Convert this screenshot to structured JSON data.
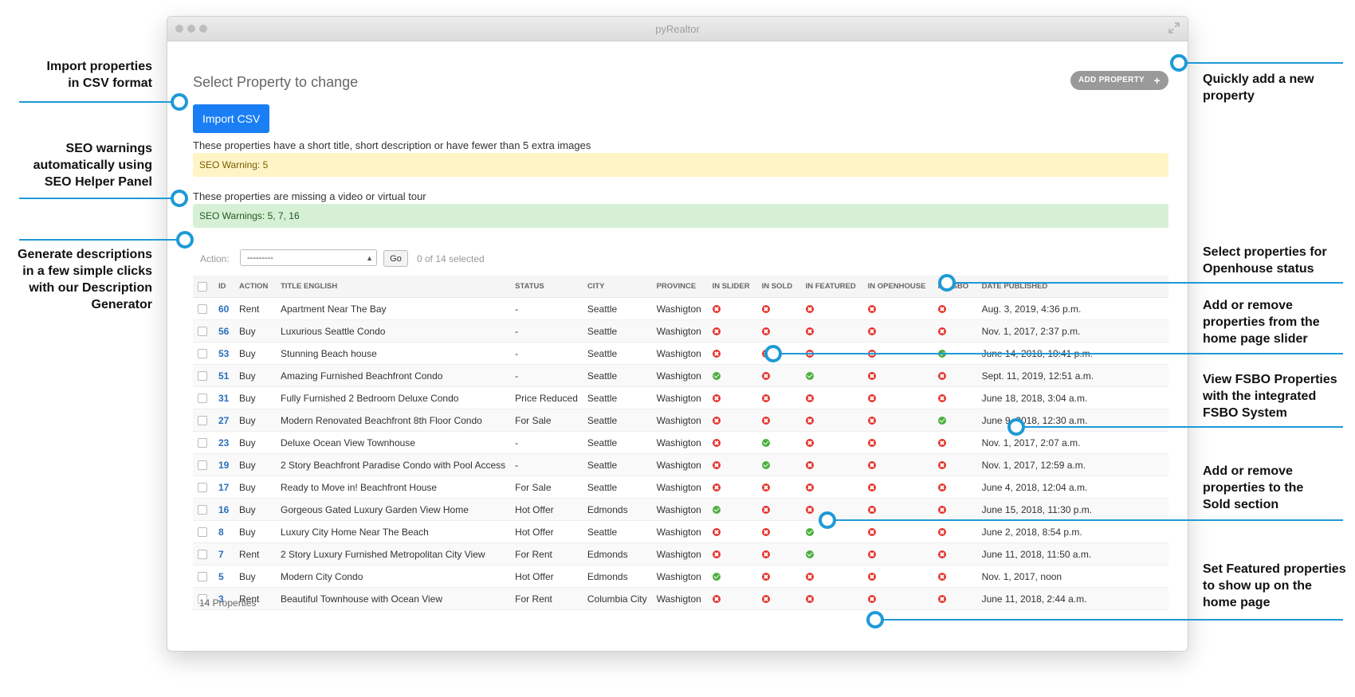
{
  "window": {
    "title": "pyRealtor"
  },
  "page": {
    "title": "Select Property to change",
    "add_button": "ADD PROPERTY",
    "import_button": "Import CSV",
    "notice_seo": "These properties have a short title, short description or have fewer than 5 extra images",
    "seo_warning": "SEO Warning: 5",
    "notice_video": "These properties are missing a video or virtual tour",
    "video_warning": "SEO Warnings: 5, 7, 16",
    "action_label": "Action:",
    "action_selected": "---------",
    "go_button": "Go",
    "selected_count": "0 of 14 selected",
    "footer_count": "14 Properties"
  },
  "table": {
    "headers": [
      "ID",
      "ACTION",
      "TITLE ENGLISH",
      "STATUS",
      "CITY",
      "PROVINCE",
      "IN SLIDER",
      "IN SOLD",
      "IN FEATURED",
      "IN OPENHOUSE",
      "IN FSBO",
      "DATE PUBLISHED"
    ],
    "rows": [
      {
        "id": "60",
        "action": "Rent",
        "title": "Apartment Near The Bay",
        "status": "-",
        "city": "Seattle",
        "province": "Washigton",
        "slider": false,
        "sold": false,
        "featured": false,
        "openhouse": false,
        "fsbo": false,
        "date": "Aug. 3, 2019, 4:36 p.m."
      },
      {
        "id": "56",
        "action": "Buy",
        "title": "Luxurious Seattle Condo",
        "status": "-",
        "city": "Seattle",
        "province": "Washigton",
        "slider": false,
        "sold": false,
        "featured": false,
        "openhouse": false,
        "fsbo": false,
        "date": "Nov. 1, 2017, 2:37 p.m."
      },
      {
        "id": "53",
        "action": "Buy",
        "title": "Stunning Beach house",
        "status": "-",
        "city": "Seattle",
        "province": "Washigton",
        "slider": false,
        "sold": false,
        "featured": false,
        "openhouse": false,
        "fsbo": true,
        "date": "June 14, 2018, 10:41 p.m."
      },
      {
        "id": "51",
        "action": "Buy",
        "title": "Amazing Furnished Beachfront Condo",
        "status": "-",
        "city": "Seattle",
        "province": "Washigton",
        "slider": true,
        "sold": false,
        "featured": true,
        "openhouse": false,
        "fsbo": false,
        "date": "Sept. 11, 2019, 12:51 a.m."
      },
      {
        "id": "31",
        "action": "Buy",
        "title": "Fully Furnished 2 Bedroom Deluxe Condo",
        "status": "Price Reduced",
        "city": "Seattle",
        "province": "Washigton",
        "slider": false,
        "sold": false,
        "featured": false,
        "openhouse": false,
        "fsbo": false,
        "date": "June 18, 2018, 3:04 a.m."
      },
      {
        "id": "27",
        "action": "Buy",
        "title": "Modern Renovated Beachfront 8th Floor Condo",
        "status": "For Sale",
        "city": "Seattle",
        "province": "Washigton",
        "slider": false,
        "sold": false,
        "featured": false,
        "openhouse": false,
        "fsbo": true,
        "date": "June 9, 2018, 12:30 a.m."
      },
      {
        "id": "23",
        "action": "Buy",
        "title": "Deluxe Ocean View Townhouse",
        "status": "-",
        "city": "Seattle",
        "province": "Washigton",
        "slider": false,
        "sold": true,
        "featured": false,
        "openhouse": false,
        "fsbo": false,
        "date": "Nov. 1, 2017, 2:07 a.m."
      },
      {
        "id": "19",
        "action": "Buy",
        "title": "2 Story Beachfront Paradise Condo with Pool Access",
        "status": "-",
        "city": "Seattle",
        "province": "Washigton",
        "slider": false,
        "sold": true,
        "featured": false,
        "openhouse": false,
        "fsbo": false,
        "date": "Nov. 1, 2017, 12:59 a.m."
      },
      {
        "id": "17",
        "action": "Buy",
        "title": "Ready to Move in! Beachfront House",
        "status": "For Sale",
        "city": "Seattle",
        "province": "Washigton",
        "slider": false,
        "sold": false,
        "featured": false,
        "openhouse": false,
        "fsbo": false,
        "date": "June 4, 2018, 12:04 a.m."
      },
      {
        "id": "16",
        "action": "Buy",
        "title": "Gorgeous Gated Luxury Garden View Home",
        "status": "Hot Offer",
        "city": "Edmonds",
        "province": "Washigton",
        "slider": true,
        "sold": false,
        "featured": false,
        "openhouse": false,
        "fsbo": false,
        "date": "June 15, 2018, 11:30 p.m."
      },
      {
        "id": "8",
        "action": "Buy",
        "title": "Luxury City Home Near The Beach",
        "status": "Hot Offer",
        "city": "Seattle",
        "province": "Washigton",
        "slider": false,
        "sold": false,
        "featured": true,
        "openhouse": false,
        "fsbo": false,
        "date": "June 2, 2018, 8:54 p.m."
      },
      {
        "id": "7",
        "action": "Rent",
        "title": "2 Story Luxury Furnished Metropolitan City View",
        "status": "For Rent",
        "city": "Edmonds",
        "province": "Washigton",
        "slider": false,
        "sold": false,
        "featured": true,
        "openhouse": false,
        "fsbo": false,
        "date": "June 11, 2018, 11:50 a.m."
      },
      {
        "id": "5",
        "action": "Buy",
        "title": "Modern City Condo",
        "status": "Hot Offer",
        "city": "Edmonds",
        "province": "Washigton",
        "slider": true,
        "sold": false,
        "featured": false,
        "openhouse": false,
        "fsbo": false,
        "date": "Nov. 1, 2017, noon"
      },
      {
        "id": "3",
        "action": "Rent",
        "title": "Beautiful Townhouse with Ocean View",
        "status": "For Rent",
        "city": "Columbia City",
        "province": "Washigton",
        "slider": false,
        "sold": false,
        "featured": false,
        "openhouse": false,
        "fsbo": false,
        "date": "June 11, 2018, 2:44 a.m."
      }
    ]
  },
  "annotations": {
    "import": "Import properties\nin CSV format",
    "seo": "SEO warnings\nautomatically using\nSEO Helper Panel",
    "descriptions": "Generate descriptions\nin a few simple clicks\nwith our Description\nGenerator",
    "add": "Quickly add a new\nproperty",
    "openhouse": "Select properties for\nOpenhouse status",
    "slider": "Add or remove\nproperties from the\nhome page slider",
    "fsbo": "View FSBO Properties\nwith the integrated\nFSBO System",
    "sold": "Add or remove\nproperties to the\nSold section",
    "featured": "Set Featured properties\nto show up on the\nhome page"
  },
  "colors": {
    "accent": "#1e9ad6",
    "primary_button": "#1a7ef5",
    "yes": "#4caf3f",
    "no": "#e4322b"
  }
}
